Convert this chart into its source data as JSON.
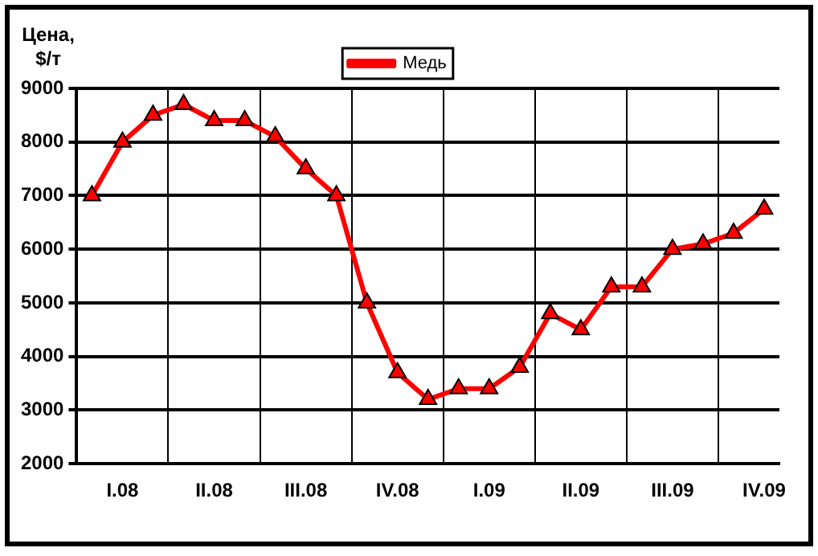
{
  "chart_data": {
    "type": "line",
    "ylabel": "Цена, $/т",
    "categories": [
      null,
      "I.08",
      null,
      null,
      "II.08",
      null,
      null,
      "III.08",
      null,
      null,
      "IV.08",
      null,
      null,
      "I.09",
      null,
      null,
      "II.09",
      null,
      null,
      "III.09",
      null,
      null,
      "IV.09"
    ],
    "series": [
      {
        "name": "Медь",
        "color": "#ff0000",
        "values": [
          7000,
          8000,
          8500,
          8700,
          8400,
          8400,
          8100,
          7500,
          7000,
          5000,
          3700,
          3200,
          3400,
          3400,
          3800,
          4800,
          4500,
          5300,
          5300,
          6000,
          6100,
          6300,
          6750
        ]
      }
    ],
    "ylim": [
      2000,
      9000
    ],
    "yticks": [
      2000,
      3000,
      4000,
      5000,
      6000,
      7000,
      8000,
      9000
    ],
    "grid": true,
    "legend": "top",
    "marker": "triangle",
    "line_style": "solid"
  }
}
